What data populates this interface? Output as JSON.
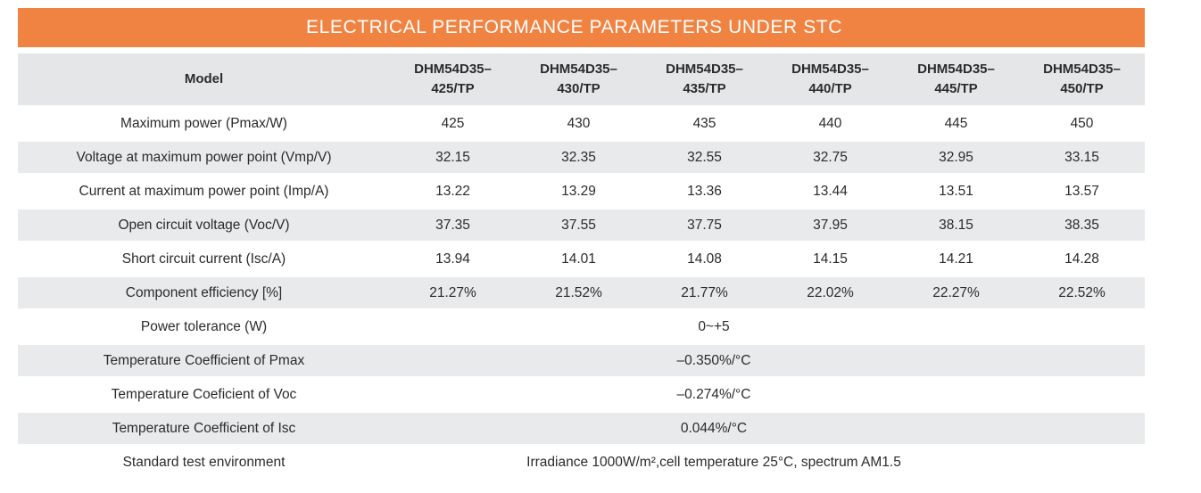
{
  "title": "ELECTRICAL PERFORMANCE PARAMETERS UNDER STC",
  "colors": {
    "accent_orange": "#F08342",
    "header_gray": "#E5E6E8",
    "row_gray": "#E9EAEB",
    "title_text": "#FFFFFF",
    "body_text": "#2B2B2B"
  },
  "table": {
    "model_label": "Model",
    "models": [
      {
        "line1": "DHM54D35–",
        "line2": "425/TP"
      },
      {
        "line1": "DHM54D35–",
        "line2": "430/TP"
      },
      {
        "line1": "DHM54D35–",
        "line2": "435/TP"
      },
      {
        "line1": "DHM54D35–",
        "line2": "440/TP"
      },
      {
        "line1": "DHM54D35–",
        "line2": "445/TP"
      },
      {
        "line1": "DHM54D35–",
        "line2": "450/TP"
      }
    ],
    "rows": [
      {
        "label": "Maximum power (Pmax/W)",
        "values": [
          "425",
          "430",
          "435",
          "440",
          "445",
          "450"
        ]
      },
      {
        "label": "Voltage at maximum power point (Vmp/V)",
        "values": [
          "32.15",
          "32.35",
          "32.55",
          "32.75",
          "32.95",
          "33.15"
        ]
      },
      {
        "label": "Current at maximum power point (Imp/A)",
        "values": [
          "13.22",
          "13.29",
          "13.36",
          "13.44",
          "13.51",
          "13.57"
        ]
      },
      {
        "label": "Open circuit voltage (Voc/V)",
        "values": [
          "37.35",
          "37.55",
          "37.75",
          "37.95",
          "38.15",
          "38.35"
        ]
      },
      {
        "label": "Short circuit current (Isc/A)",
        "values": [
          "13.94",
          "14.01",
          "14.08",
          "14.15",
          "14.21",
          "14.28"
        ]
      },
      {
        "label": "Component efficiency [%]",
        "values": [
          "21.27%",
          "21.52%",
          "21.77%",
          "22.02%",
          "22.27%",
          "22.52%"
        ]
      },
      {
        "label": "Power tolerance (W)",
        "span_value": "0~+5"
      },
      {
        "label": "Temperature Coefficient of Pmax",
        "span_value": "–0.350%/°C"
      },
      {
        "label": "Temperature Coeficient of Voc",
        "span_value": "–0.274%/°C"
      },
      {
        "label": "Temperature Coefficient of Isc",
        "span_value": "0.044%/°C"
      },
      {
        "label": "Standard test environment",
        "span_value": "Irradiance 1000W/m²,cell temperature 25°C, spectrum AM1.5"
      }
    ]
  }
}
